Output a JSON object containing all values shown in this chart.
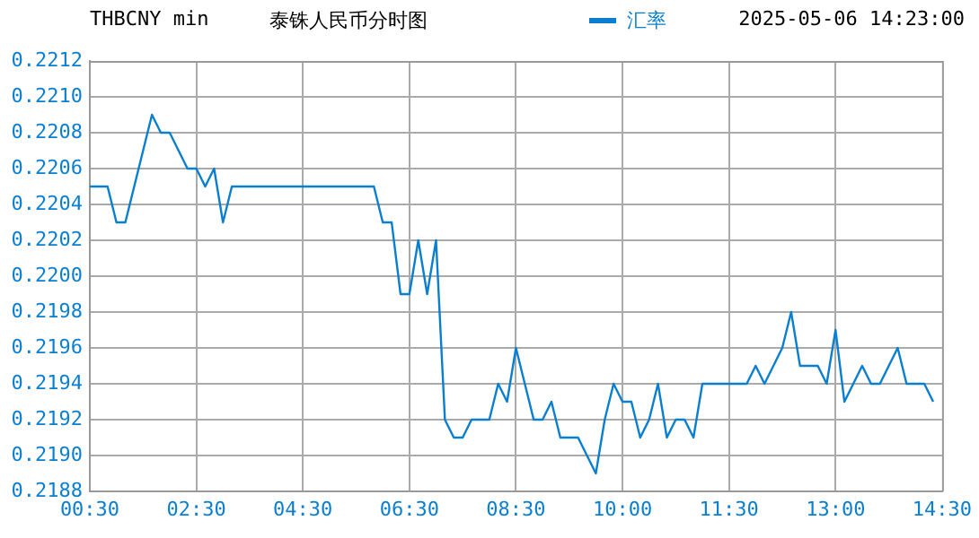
{
  "chart_data": {
    "type": "line",
    "title": "泰铢人民币分时图",
    "subtitle": "THBCNY min",
    "annotations": [
      "2025-05-06 14:23:00"
    ],
    "categories": [
      "00:30",
      null,
      null,
      null,
      null,
      null,
      null,
      null,
      null,
      null,
      null,
      null,
      "02:30",
      null,
      null,
      null,
      null,
      null,
      null,
      null,
      null,
      null,
      null,
      null,
      "04:30",
      null,
      null,
      null,
      null,
      null,
      null,
      null,
      null,
      null,
      null,
      null,
      "06:30",
      null,
      null,
      null,
      null,
      null,
      null,
      null,
      null,
      null,
      null,
      null,
      "08:30",
      null,
      null,
      null,
      null,
      null,
      null,
      null,
      null,
      null,
      null,
      null,
      "10:00",
      null,
      null,
      null,
      null,
      null,
      null,
      null,
      null,
      null,
      null,
      null,
      "11:30",
      null,
      null,
      null,
      null,
      null,
      null,
      null,
      null,
      null,
      null,
      null,
      "13:00",
      null,
      null,
      null,
      null,
      null,
      null,
      null,
      null,
      null,
      null,
      null,
      "14:30"
    ],
    "series": [
      {
        "name": "汇率",
        "color": "#0a7fd0",
        "values": [
          0.2205,
          0.2205,
          0.2205,
          0.2203,
          0.2203,
          0.2205,
          0.2207,
          0.2209,
          0.2208,
          0.2208,
          0.2207,
          0.2206,
          0.2206,
          0.2205,
          0.2206,
          0.2203,
          0.2205,
          0.2205,
          0.2205,
          0.2205,
          0.2205,
          0.2205,
          0.2205,
          0.2205,
          0.2205,
          0.2205,
          0.2205,
          0.2205,
          0.2205,
          0.2205,
          0.2205,
          0.2205,
          0.2205,
          0.2203,
          0.2203,
          0.2199,
          0.2199,
          0.2202,
          0.2199,
          0.2202,
          0.2192,
          0.2191,
          0.2191,
          0.2192,
          0.2192,
          0.2192,
          0.2194,
          0.2193,
          0.2196,
          0.2194,
          0.2192,
          0.2192,
          0.2193,
          0.2191,
          0.2191,
          0.2191,
          0.219,
          0.2189,
          0.2192,
          0.2194,
          0.2193,
          0.2193,
          0.2191,
          0.2192,
          0.2194,
          0.2191,
          0.2192,
          0.2192,
          0.2191,
          0.2194,
          0.2194,
          0.2194,
          0.2194,
          0.2194,
          0.2194,
          0.2195,
          0.2194,
          0.2195,
          0.2196,
          0.2198,
          0.2195,
          0.2195,
          0.2195,
          0.2194,
          0.2197,
          0.2193,
          0.2194,
          0.2195,
          0.2194,
          0.2194,
          0.2195,
          0.2196,
          0.2194,
          0.2194,
          0.2194,
          0.2193,
          null
        ]
      }
    ],
    "ylim": [
      0.2188,
      0.2212
    ],
    "yticks": [
      0.2188,
      {
        "value": 0.219,
        "label": "0.2190"
      },
      0.2192,
      0.2194,
      0.2196,
      0.2198,
      {
        "value": 0.22,
        "label": "0.2200"
      },
      0.2202,
      0.2204,
      0.2206,
      0.2208,
      {
        "value": 0.221,
        "label": "0.2210"
      },
      0.2212
    ],
    "grid": true,
    "legend": "top",
    "marker": "none",
    "line_style": "solid"
  }
}
